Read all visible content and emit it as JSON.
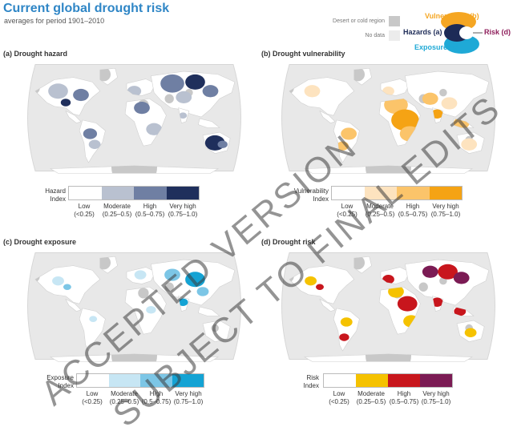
{
  "header": {
    "title": "Current global drought risk",
    "subtitle": "averages for period 1901–2010"
  },
  "key": {
    "desert": "Desert or cold region",
    "nodata": "No data",
    "desert_color": "#c8c8c8",
    "nodata_color": "#ececec"
  },
  "venn": {
    "vulnerability": "Vulnerability (b)",
    "hazards": "Hazards (a)",
    "risk": "Risk (d)",
    "exposure": "Exposure (c)",
    "colors": {
      "vulnerability": "#f5a623",
      "hazards": "#1d2b57",
      "risk": "#8e1e5b",
      "exposure": "#1fa9d6"
    }
  },
  "panels": {
    "a": {
      "label": "(a) Drought hazard",
      "legend_title_1": "Hazard",
      "legend_title_2": "Index",
      "colors": [
        "#ffffff",
        "#b9c1d0",
        "#6f7fa3",
        "#1f2f5c"
      ],
      "classes": [
        {
          "l1": "Low",
          "l2": "(<0.25)"
        },
        {
          "l1": "Moderate",
          "l2": "(0.25–0.5)"
        },
        {
          "l1": "High",
          "l2": "(0.5–0.75)"
        },
        {
          "l1": "Very high",
          "l2": "(0.75–1.0)"
        }
      ]
    },
    "b": {
      "label": "(b) Drought vulnerability",
      "legend_title_1": "Vulnerability",
      "legend_title_2": "Index",
      "colors": [
        "#ffffff",
        "#fde3bf",
        "#fbc46a",
        "#f5a314"
      ],
      "classes": [
        {
          "l1": "Low",
          "l2": "(<0.25)"
        },
        {
          "l1": "Moderate",
          "l2": "(0.25–0.5)"
        },
        {
          "l1": "High",
          "l2": "(0.5–0.75)"
        },
        {
          "l1": "Very high",
          "l2": "(0.75–1.0)"
        }
      ]
    },
    "c": {
      "label": "(c) Drought exposure",
      "legend_title_1": "Exposure",
      "legend_title_2": "Index",
      "colors": [
        "#ffffff",
        "#c7e6f4",
        "#7cc6e6",
        "#14a3d4"
      ],
      "classes": [
        {
          "l1": "Low",
          "l2": "(<0.25)"
        },
        {
          "l1": "Moderate",
          "l2": "(0.25–0.5)"
        },
        {
          "l1": "High",
          "l2": "(0.5–0.75)"
        },
        {
          "l1": "Very high",
          "l2": "(0.75–1.0)"
        }
      ]
    },
    "d": {
      "label": "(d) Drought risk",
      "legend_title_1": "Risk",
      "legend_title_2": "Index",
      "colors": [
        "#ffffff",
        "#f5c200",
        "#c8161d",
        "#7b1b54"
      ],
      "classes": [
        {
          "l1": "Low",
          "l2": "(<0.25)"
        },
        {
          "l1": "Moderate",
          "l2": "(0.25–0.5)"
        },
        {
          "l1": "High",
          "l2": "(0.5–0.75)"
        },
        {
          "l1": "Very high",
          "l2": "(0.75–1.0)"
        }
      ]
    }
  },
  "watermark": {
    "line1": "ACCEPTED VERSION",
    "line2": "SUBJECT TO FINAL EDITS"
  }
}
